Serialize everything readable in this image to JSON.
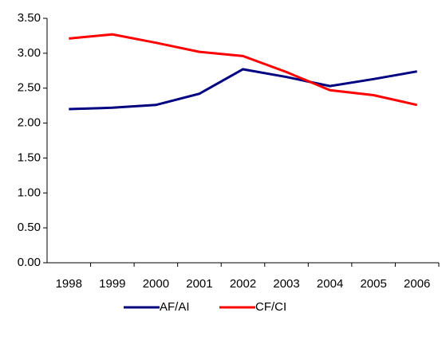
{
  "chart_data": {
    "type": "line",
    "categories": [
      "1998",
      "1999",
      "2000",
      "2001",
      "2002",
      "2003",
      "2004",
      "2005",
      "2006"
    ],
    "series": [
      {
        "name": "AF/AI",
        "color": "#000080",
        "values": [
          2.2,
          2.22,
          2.26,
          2.42,
          2.77,
          2.66,
          2.53,
          2.63,
          2.74
        ]
      },
      {
        "name": "CF/CI",
        "color": "#ff0000",
        "values": [
          3.21,
          3.27,
          3.15,
          3.02,
          2.96,
          2.73,
          2.47,
          2.4,
          2.26
        ]
      }
    ],
    "ylim": [
      0,
      3.5
    ],
    "yticks": [
      {
        "value": 0,
        "label": "0.00"
      },
      {
        "value": 0.5,
        "label": "0.50"
      },
      {
        "value": 1,
        "label": "1.00"
      },
      {
        "value": 1.5,
        "label": "1.50"
      },
      {
        "value": 2,
        "label": "2.00"
      },
      {
        "value": 2.5,
        "label": "2.50"
      },
      {
        "value": 3,
        "label": "3.00"
      },
      {
        "value": 3.5,
        "label": "3.50"
      }
    ],
    "grid": false,
    "legend": "bottom"
  }
}
